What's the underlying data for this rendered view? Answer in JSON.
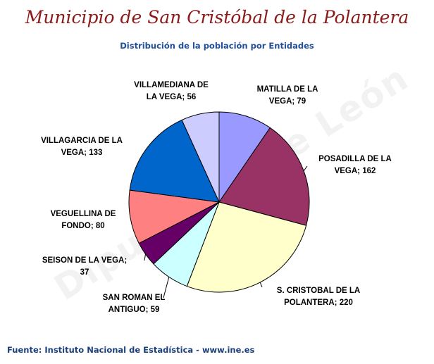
{
  "page": {
    "title": "Municipio de San Cristóbal de la Polantera",
    "source": "Fuente: Instituto Nacional de Estadística - www.ine.es",
    "watermark": "Diputación de León"
  },
  "chart_data": {
    "type": "pie",
    "title": "Distribución de la población por Entidades",
    "slices": [
      {
        "label_lines": [
          "MATILLA DE LA",
          "VEGA; 79"
        ],
        "value": 79,
        "color": "#9999ff"
      },
      {
        "label_lines": [
          "POSADILLA DE LA",
          "VEGA; 162"
        ],
        "value": 162,
        "color": "#993366"
      },
      {
        "label_lines": [
          "S. CRISTOBAL DE LA",
          "POLANTERA; 220"
        ],
        "value": 220,
        "color": "#ffffcc"
      },
      {
        "label_lines": [
          "SAN ROMAN EL",
          "ANTIGUO; 59"
        ],
        "value": 59,
        "color": "#ccffff"
      },
      {
        "label_lines": [
          "SEISON DE LA VEGA;",
          "37"
        ],
        "value": 37,
        "color": "#660066"
      },
      {
        "label_lines": [
          "VEGUELLINA DE",
          "FONDO; 80"
        ],
        "value": 80,
        "color": "#ff8080"
      },
      {
        "label_lines": [
          "VILLAGARCIA DE LA",
          "VEGA; 133"
        ],
        "value": 133,
        "color": "#0066cc"
      },
      {
        "label_lines": [
          "VILLAMEDIANA DE",
          "LA VEGA; 56"
        ],
        "value": 56,
        "color": "#ccccff"
      }
    ]
  }
}
